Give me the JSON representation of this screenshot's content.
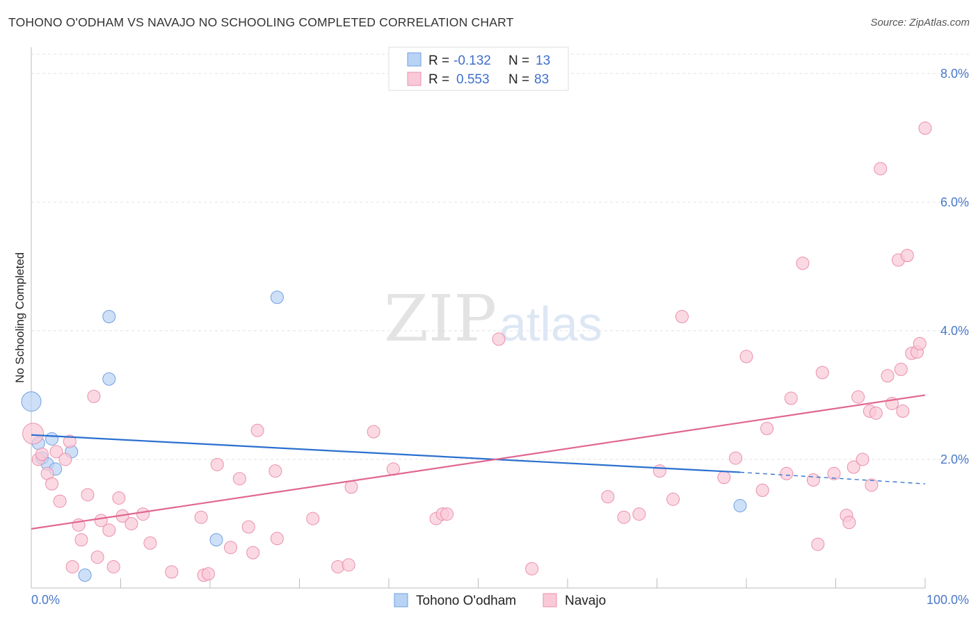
{
  "title": "TOHONO O'ODHAM VS NAVAJO NO SCHOOLING COMPLETED CORRELATION CHART",
  "source": "Source: ZipAtlas.com",
  "watermark": {
    "zip": "ZIP",
    "atlas": "atlas"
  },
  "legend": {
    "rows": [
      {
        "r_label": "R =",
        "r_value": "-0.132",
        "n_label": "N =",
        "n_value": "13",
        "color": "#b9d3f5",
        "stroke": "#6f9fe0"
      },
      {
        "r_label": "R =",
        "r_value": "0.553",
        "n_label": "N =",
        "n_value": "83",
        "color": "#f9c9d7",
        "stroke": "#ea8fac"
      }
    ]
  },
  "bottom_legend": [
    {
      "label": "Tohono O'odham",
      "color": "#b9d3f5",
      "stroke": "#6f9fe0"
    },
    {
      "label": "Navajo",
      "color": "#f9c9d7",
      "stroke": "#ea8fac"
    }
  ],
  "chart_data": {
    "type": "scatter",
    "title": "TOHONO O'ODHAM VS NAVAJO NO SCHOOLING COMPLETED CORRELATION CHART",
    "xlabel": "",
    "ylabel": "No Schooling Completed",
    "xlim": [
      0,
      100
    ],
    "ylim": [
      0,
      8.3
    ],
    "x_tick_labels": [
      "0.0%",
      "100.0%"
    ],
    "y_ticks": [
      2,
      4,
      6,
      8
    ],
    "y_tick_labels": [
      "2.0%",
      "4.0%",
      "6.0%",
      "8.0%"
    ],
    "grid": true,
    "series": [
      {
        "name": "Tohono O'odham",
        "color": "#6f9fe0",
        "fill": "#b9d3f5",
        "points": [
          [
            0.0,
            2.9,
            14
          ],
          [
            0.8,
            2.25,
            9
          ],
          [
            1.2,
            2.02,
            9
          ],
          [
            1.8,
            1.93,
            9
          ],
          [
            2.3,
            2.32,
            9
          ],
          [
            2.7,
            1.85,
            9
          ],
          [
            4.5,
            2.12,
            9
          ],
          [
            6.0,
            0.2,
            9
          ],
          [
            8.7,
            3.25,
            9
          ],
          [
            8.7,
            4.22,
            9
          ],
          [
            20.7,
            0.75,
            9
          ],
          [
            27.5,
            4.52,
            9
          ],
          [
            79.3,
            1.28,
            9
          ]
        ],
        "trend": {
          "x0": 0,
          "y0": 2.38,
          "x1": 79.3,
          "y1": 1.8,
          "dash_x1": 100,
          "dash_y1": 1.62
        }
      },
      {
        "name": "Navajo",
        "color": "#ea8fac",
        "fill": "#f9c9d7",
        "points": [
          [
            0.2,
            2.4,
            15
          ],
          [
            0.8,
            2.0,
            9
          ],
          [
            1.2,
            2.08,
            9
          ],
          [
            1.8,
            1.78,
            9
          ],
          [
            2.3,
            1.62,
            9
          ],
          [
            2.8,
            2.12,
            9
          ],
          [
            3.2,
            1.35,
            9
          ],
          [
            3.8,
            2.0,
            9
          ],
          [
            4.3,
            2.28,
            9
          ],
          [
            4.6,
            0.33,
            9
          ],
          [
            5.3,
            0.98,
            9
          ],
          [
            5.6,
            0.75,
            9
          ],
          [
            6.3,
            1.45,
            9
          ],
          [
            7.0,
            2.98,
            9
          ],
          [
            7.4,
            0.48,
            9
          ],
          [
            7.8,
            1.05,
            9
          ],
          [
            8.7,
            0.9,
            9
          ],
          [
            9.2,
            0.33,
            9
          ],
          [
            9.8,
            1.4,
            9
          ],
          [
            10.2,
            1.12,
            9
          ],
          [
            11.2,
            1.0,
            9
          ],
          [
            12.5,
            1.15,
            9
          ],
          [
            13.3,
            0.7,
            9
          ],
          [
            15.7,
            0.25,
            9
          ],
          [
            19.0,
            1.1,
            9
          ],
          [
            19.3,
            0.2,
            9
          ],
          [
            19.8,
            0.22,
            9
          ],
          [
            20.8,
            1.92,
            9
          ],
          [
            22.3,
            0.63,
            9
          ],
          [
            23.3,
            1.7,
            9
          ],
          [
            24.3,
            0.95,
            9
          ],
          [
            24.8,
            0.55,
            9
          ],
          [
            25.3,
            2.45,
            9
          ],
          [
            27.3,
            1.82,
            9
          ],
          [
            27.5,
            0.77,
            9
          ],
          [
            31.5,
            1.08,
            9
          ],
          [
            34.3,
            0.33,
            9
          ],
          [
            35.5,
            0.36,
            9
          ],
          [
            35.8,
            1.57,
            9
          ],
          [
            38.3,
            2.43,
            9
          ],
          [
            40.5,
            1.85,
            9
          ],
          [
            45.3,
            1.08,
            9
          ],
          [
            46.0,
            1.15,
            9
          ],
          [
            46.5,
            1.15,
            9
          ],
          [
            52.3,
            3.87,
            9
          ],
          [
            56.0,
            0.3,
            9
          ],
          [
            64.5,
            1.42,
            9
          ],
          [
            66.3,
            1.1,
            9
          ],
          [
            68.0,
            1.15,
            9
          ],
          [
            70.3,
            1.82,
            9
          ],
          [
            71.8,
            1.38,
            9
          ],
          [
            72.8,
            4.22,
            9
          ],
          [
            77.5,
            1.72,
            9
          ],
          [
            78.8,
            2.02,
            9
          ],
          [
            80.0,
            3.6,
            9
          ],
          [
            81.8,
            1.52,
            9
          ],
          [
            82.3,
            2.48,
            9
          ],
          [
            84.5,
            1.78,
            9
          ],
          [
            85.0,
            2.95,
            9
          ],
          [
            86.3,
            5.05,
            9
          ],
          [
            87.5,
            1.68,
            9
          ],
          [
            88.0,
            0.68,
            9
          ],
          [
            88.5,
            3.35,
            9
          ],
          [
            89.8,
            1.78,
            9
          ],
          [
            91.2,
            1.13,
            9
          ],
          [
            91.5,
            1.02,
            9
          ],
          [
            92.0,
            1.88,
            9
          ],
          [
            92.5,
            2.97,
            9
          ],
          [
            93.0,
            2.0,
            9
          ],
          [
            93.8,
            2.75,
            9
          ],
          [
            94.5,
            2.72,
            9
          ],
          [
            94.0,
            1.6,
            9
          ],
          [
            95.0,
            6.52,
            9
          ],
          [
            95.8,
            3.3,
            9
          ],
          [
            96.3,
            2.87,
            9
          ],
          [
            97.0,
            5.1,
            9
          ],
          [
            97.3,
            3.4,
            9
          ],
          [
            97.5,
            2.75,
            9
          ],
          [
            98.0,
            5.17,
            9
          ],
          [
            98.5,
            3.65,
            9
          ],
          [
            99.1,
            3.67,
            9
          ],
          [
            99.4,
            3.8,
            9
          ],
          [
            100.0,
            7.15,
            9
          ]
        ],
        "trend": {
          "x0": 0,
          "y0": 0.92,
          "x1": 100,
          "y1": 3.0
        }
      }
    ]
  }
}
